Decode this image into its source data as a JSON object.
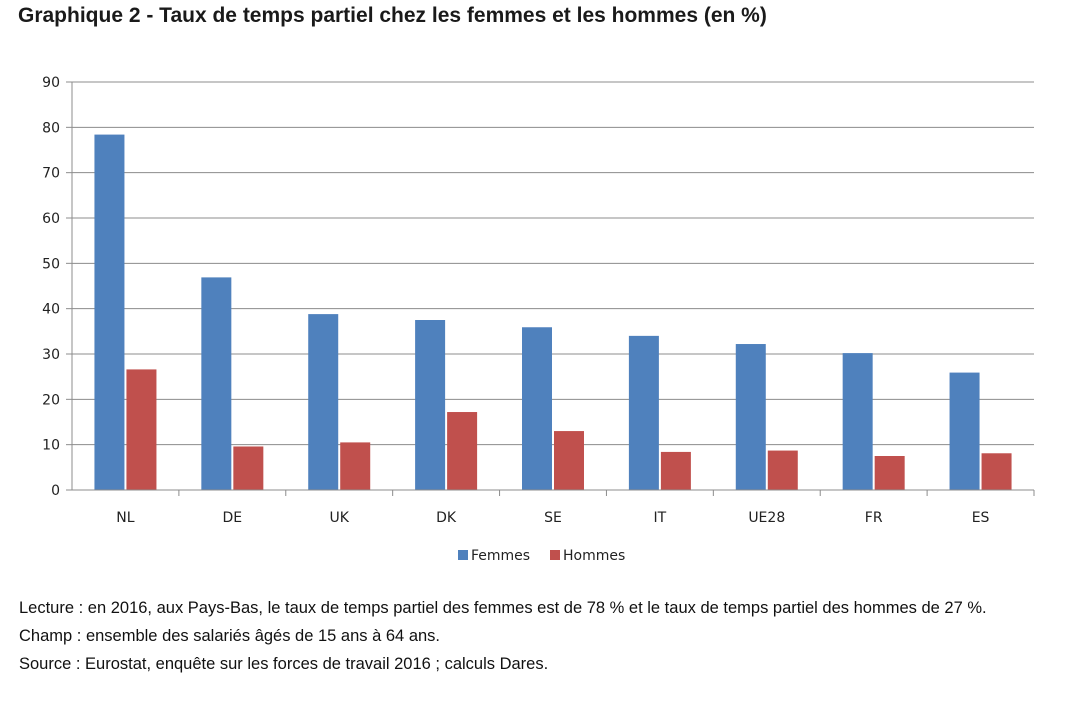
{
  "chart_data": {
    "type": "bar",
    "title": "Graphique 2 - Taux de temps partiel chez les femmes et les hommes (en %)",
    "categories": [
      "NL",
      "DE",
      "UK",
      "DK",
      "SE",
      "IT",
      "UE28",
      "FR",
      "ES"
    ],
    "series": [
      {
        "name": "Femmes",
        "color": "#4f81bd",
        "values": [
          78.4,
          46.9,
          38.8,
          37.5,
          35.9,
          34.0,
          32.2,
          30.2,
          25.9
        ]
      },
      {
        "name": "Hommes",
        "color": "#c0504d",
        "values": [
          26.6,
          9.6,
          10.5,
          17.2,
          13.0,
          8.4,
          8.7,
          7.5,
          8.1
        ]
      }
    ],
    "ylim": [
      0,
      90
    ],
    "yticks": [
      0,
      10,
      20,
      30,
      40,
      50,
      60,
      70,
      80,
      90
    ],
    "grid": true,
    "legend_position": "bottom"
  },
  "notes": {
    "lecture": "Lecture : en 2016, aux Pays-Bas, le taux de temps partiel des femmes est de 78 % et le taux de temps partiel des hommes de 27 %.",
    "champ": "Champ : ensemble des salariés âgés de 15 ans à 64 ans.",
    "source": "Source : Eurostat, enquête sur les forces de travail 2016 ; calculs Dares."
  }
}
